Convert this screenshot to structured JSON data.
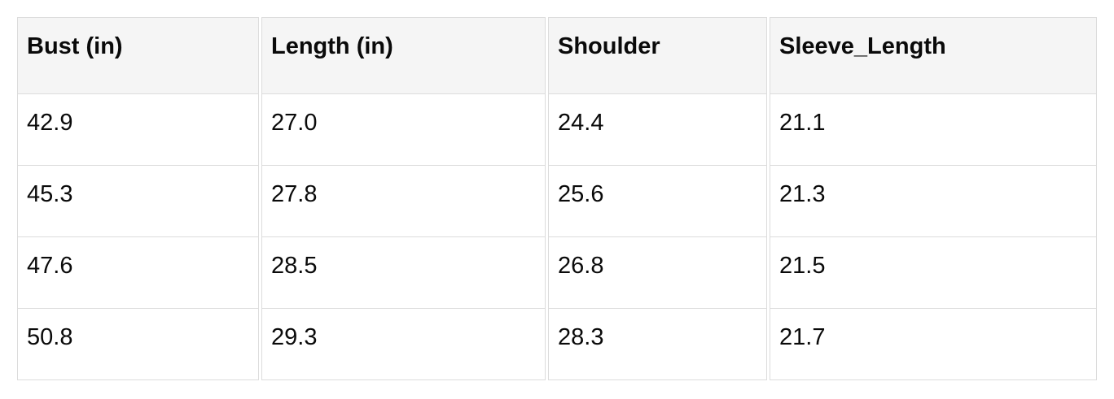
{
  "table": {
    "columns": [
      "Bust (in)",
      "Length (in)",
      "Shoulder",
      "Sleeve_Length"
    ],
    "rows": [
      [
        "42.9",
        "27.0",
        "24.4",
        "21.1"
      ],
      [
        "45.3",
        "27.8",
        "25.6",
        "21.3"
      ],
      [
        "47.6",
        "28.5",
        "26.8",
        "21.5"
      ],
      [
        "50.8",
        "29.3",
        "28.3",
        "21.7"
      ]
    ]
  },
  "colors": {
    "header_background": "#f5f5f5",
    "cell_background": "#ffffff",
    "border": "#dcdcdc",
    "text": "#0a0a0a"
  }
}
